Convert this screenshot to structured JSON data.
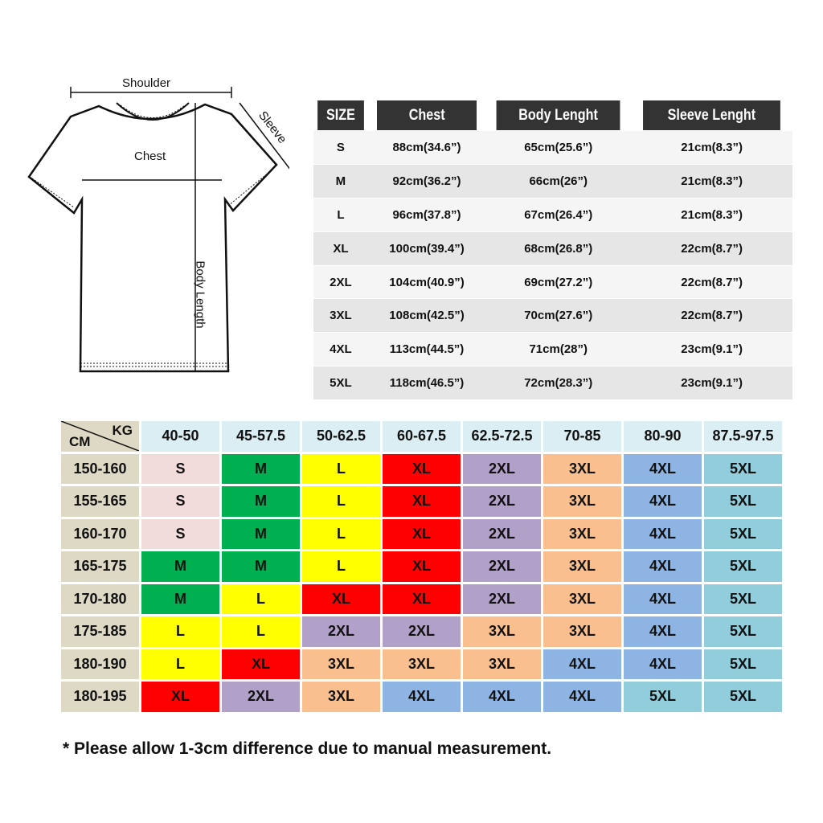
{
  "diagram": {
    "shoulder": "Shoulder",
    "sleeve": "Sleeve",
    "chest": "Chest",
    "body_length": "Body Length"
  },
  "measurements": {
    "headers": [
      "SIZE",
      "Chest",
      "Body Lenght",
      "Sleeve Lenght"
    ],
    "rows": [
      [
        "S",
        "88cm(34.6”)",
        "65cm(25.6”)",
        "21cm(8.3”)"
      ],
      [
        "M",
        "92cm(36.2”)",
        "66cm(26”)",
        "21cm(8.3”)"
      ],
      [
        "L",
        "96cm(37.8”)",
        "67cm(26.4”)",
        "21cm(8.3”)"
      ],
      [
        "XL",
        "100cm(39.4”)",
        "68cm(26.8”)",
        "22cm(8.7”)"
      ],
      [
        "2XL",
        "104cm(40.9”)",
        "69cm(27.2”)",
        "22cm(8.7”)"
      ],
      [
        "3XL",
        "108cm(42.5”)",
        "70cm(27.6”)",
        "22cm(8.7”)"
      ],
      [
        "4XL",
        "113cm(44.5”)",
        "71cm(28”)",
        "23cm(9.1”)"
      ],
      [
        "5XL",
        "118cm(46.5”)",
        "72cm(28.3”)",
        "23cm(9.1”)"
      ]
    ]
  },
  "size_grid": {
    "corner_cm": "CM",
    "corner_kg": "KG",
    "weights": [
      "40-50",
      "45-57.5",
      "50-62.5",
      "60-67.5",
      "62.5-72.5",
      "70-85",
      "80-90",
      "87.5-97.5"
    ],
    "heights": [
      "150-160",
      "155-165",
      "160-170",
      "165-175",
      "170-180",
      "175-185",
      "180-190",
      "180-195"
    ],
    "cells": [
      [
        "S",
        "M",
        "L",
        "XL",
        "2XL",
        "3XL",
        "4XL",
        "5XL"
      ],
      [
        "S",
        "M",
        "L",
        "XL",
        "2XL",
        "3XL",
        "4XL",
        "5XL"
      ],
      [
        "S",
        "M",
        "L",
        "XL",
        "2XL",
        "3XL",
        "4XL",
        "5XL"
      ],
      [
        "M",
        "M",
        "L",
        "XL",
        "2XL",
        "3XL",
        "4XL",
        "5XL"
      ],
      [
        "M",
        "L",
        "XL",
        "XL",
        "2XL",
        "3XL",
        "4XL",
        "5XL"
      ],
      [
        "L",
        "L",
        "2XL",
        "2XL",
        "3XL",
        "3XL",
        "4XL",
        "5XL"
      ],
      [
        "L",
        "XL",
        "3XL",
        "3XL",
        "3XL",
        "4XL",
        "4XL",
        "5XL"
      ],
      [
        "XL",
        "2XL",
        "3XL",
        "4XL",
        "4XL",
        "4XL",
        "5XL",
        "5XL"
      ]
    ],
    "size_colors": {
      "S": "#f2dcdb",
      "M": "#00b050",
      "L": "#ffff00",
      "XL": "#ff0000",
      "2XL": "#b1a0c7",
      "3XL": "#fabf8f",
      "4XL": "#8db4e2",
      "5XL": "#92cddc"
    }
  },
  "note": "* Please allow 1-3cm difference due to manual measurement."
}
